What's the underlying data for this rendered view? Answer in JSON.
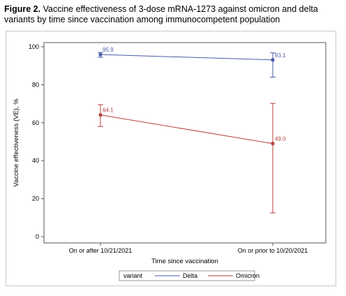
{
  "caption": {
    "bold": "Figure 2.",
    "text": "Vaccine effectiveness of 3-dose mRNA-1273 against omicron and delta variants by time since vaccination among immunocompetent population"
  },
  "chart_data": {
    "type": "line",
    "title": "",
    "xlabel": "Time since vaccination",
    "ylabel": "Vaccine effectiveness (VE), %",
    "categories": [
      "On or after 10/21/2021",
      "On or prior to 10/20/2021"
    ],
    "ylim": [
      0,
      100
    ],
    "yticks": [
      0,
      20,
      40,
      60,
      80,
      100
    ],
    "grid": false,
    "legend": {
      "title": "variant",
      "placement": "bottom"
    },
    "series": [
      {
        "name": "Delta",
        "color": "#4a5aa8",
        "values": [
          95.9,
          93.1
        ],
        "ci_lower": [
          94.5,
          84.0
        ],
        "ci_upper": [
          97.0,
          96.8
        ],
        "labels": [
          "95.9",
          "93.1"
        ]
      },
      {
        "name": "Omicron",
        "color": "#b5423c",
        "values": [
          64.1,
          49.0
        ],
        "ci_lower": [
          58.0,
          12.5
        ],
        "ci_upper": [
          69.5,
          70.2
        ],
        "labels": [
          "64.1",
          "49.0"
        ]
      }
    ]
  }
}
